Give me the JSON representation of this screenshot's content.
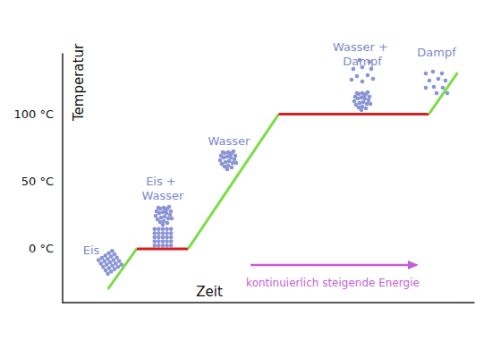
{
  "chart_data": {
    "type": "line",
    "ylabel": "Temperatur",
    "xlabel": "Zeit",
    "xlim": [
      0,
      100
    ],
    "ylim": [
      -40,
      145
    ],
    "yticks": [
      {
        "value": 0,
        "label": "0 °C"
      },
      {
        "value": 50,
        "label": "50 °C"
      },
      {
        "value": 100,
        "label": "100 °C"
      }
    ],
    "tick_labels": "y",
    "grid": false,
    "series": [
      {
        "color": "#7ddc4a",
        "x": [
          11,
          18
        ],
        "values": [
          -30,
          0
        ]
      },
      {
        "color": "#d81e1e",
        "x": [
          18,
          30.5
        ],
        "values": [
          0,
          0
        ]
      },
      {
        "color": "#7ddc4a",
        "x": [
          30.5,
          52.5
        ],
        "values": [
          0,
          100
        ]
      },
      {
        "color": "#d81e1e",
        "x": [
          52.5,
          89
        ],
        "values": [
          100,
          100
        ]
      },
      {
        "color": "#7ddc4a",
        "x": [
          89,
          96
        ],
        "values": [
          100,
          131
        ]
      }
    ],
    "annotations": [
      "Eis",
      "Eis + Wasser",
      "Wasser",
      "Wasser + Dampf",
      "Dampf",
      "kontinuierlich steigende Energie"
    ]
  }
}
